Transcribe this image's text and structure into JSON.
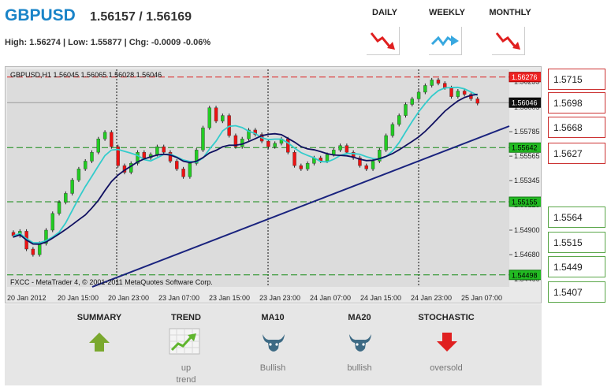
{
  "header": {
    "symbol": "GBPUSD",
    "bid_ask": "1.56157 / 1.56169",
    "stats": "High: 1.56274 | Low: 1.55877 | Chg: -0.0009 -0.06%"
  },
  "periods": [
    {
      "label": "DAILY",
      "direction": "down",
      "icon": "trend-down-arrow-icon",
      "color": "#e02020"
    },
    {
      "label": "WEEKLY",
      "direction": "flat",
      "icon": "trend-flat-arrow-icon",
      "color": "#38a8e0"
    },
    {
      "label": "MONTHLY",
      "direction": "down",
      "icon": "trend-down-arrow-icon",
      "color": "#e02020"
    }
  ],
  "chart": {
    "info": "GBPUSD,H1  1.56045 1.56065 1.56028 1.56046",
    "copyright": "FXCC - MetaTrader 4, © 2001-2011 MetaQuotes Software Corp.",
    "y_ticks": [
      "1.56235",
      "1.56005",
      "1.55785",
      "1.55565",
      "1.55345",
      "1.55125",
      "1.54900",
      "1.54680",
      "1.54460"
    ],
    "x_ticks": [
      "20 Jan 2012",
      "20 Jan 15:00",
      "20 Jan 23:00",
      "23 Jan 07:00",
      "23 Jan 15:00",
      "23 Jan 23:00",
      "24 Jan 07:00",
      "24 Jan 15:00",
      "24 Jan 23:00",
      "25 Jan 07:00"
    ],
    "marker_red": "1.56276",
    "marker_current": "1.56046",
    "marker_green1": "1.55642",
    "marker_green2": "1.55155",
    "marker_green3": "1.54498",
    "colors": {
      "bull": "#22cc22",
      "bear": "#ee1111",
      "ma_fast": "#33cccc",
      "ma_slow": "#101060",
      "trendline": "#1a237e"
    }
  },
  "resistance_levels": [
    "1.5715",
    "1.5698",
    "1.5668",
    "1.5627"
  ],
  "support_levels": [
    "1.5564",
    "1.5515",
    "1.5449",
    "1.5407"
  ],
  "indicators": [
    {
      "title": "SUMMARY",
      "icon": "up-arrow-icon",
      "value": ""
    },
    {
      "title": "TREND",
      "icon": "uptrend-chart-icon",
      "value": "up trend"
    },
    {
      "title": "MA10",
      "icon": "bull-icon",
      "value": "Bullish"
    },
    {
      "title": "MA20",
      "icon": "bull-icon",
      "value": "bullish"
    },
    {
      "title": "STOCHASTIC",
      "icon": "down-arrow-icon",
      "value": "oversold"
    }
  ]
}
